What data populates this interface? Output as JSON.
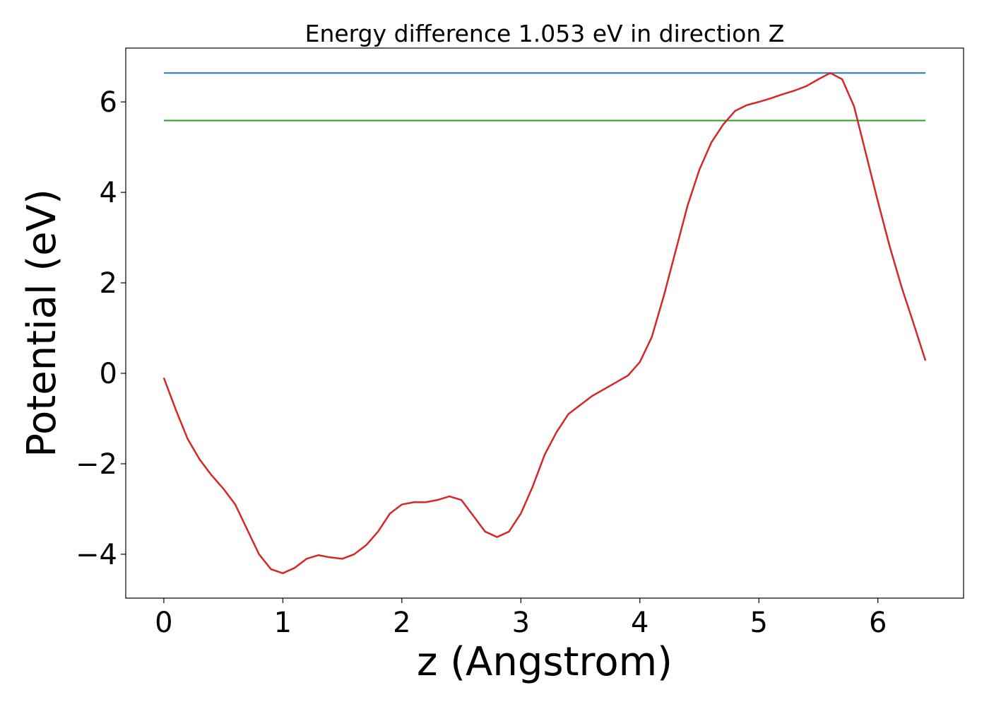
{
  "chart_data": {
    "type": "line",
    "title": "Energy difference 1.053 eV in direction Z",
    "xlabel": "z (Angstrom)",
    "ylabel": "Potential (eV)",
    "x": [
      0,
      0.1,
      0.2,
      0.3,
      0.4,
      0.5,
      0.6,
      0.7,
      0.8,
      0.9,
      1.0,
      1.1,
      1.2,
      1.3,
      1.4,
      1.5,
      1.6,
      1.7,
      1.8,
      1.9,
      2.0,
      2.1,
      2.2,
      2.3,
      2.4,
      2.5,
      2.6,
      2.7,
      2.8,
      2.9,
      3.0,
      3.1,
      3.2,
      3.3,
      3.4,
      3.5,
      3.6,
      3.7,
      3.8,
      3.9,
      4.0,
      4.1,
      4.2,
      4.3,
      4.4,
      4.5,
      4.6,
      4.7,
      4.8,
      4.9,
      5.0,
      5.1,
      5.2,
      5.3,
      5.4,
      5.5,
      5.6,
      5.7,
      5.8,
      5.9,
      6.0,
      6.1,
      6.2,
      6.3,
      6.4
    ],
    "series": [
      {
        "color": "#d62728",
        "values": [
          -0.1,
          -0.8,
          -1.45,
          -1.9,
          -2.25,
          -2.55,
          -2.9,
          -3.45,
          -4.0,
          -4.33,
          -4.42,
          -4.3,
          -4.1,
          -4.02,
          -4.07,
          -4.1,
          -4.0,
          -3.8,
          -3.5,
          -3.1,
          -2.9,
          -2.85,
          -2.85,
          -2.8,
          -2.72,
          -2.8,
          -3.15,
          -3.5,
          -3.62,
          -3.5,
          -3.1,
          -2.5,
          -1.8,
          -1.3,
          -0.9,
          -0.7,
          -0.5,
          -0.35,
          -0.2,
          -0.05,
          0.25,
          0.8,
          1.7,
          2.7,
          3.7,
          4.5,
          5.1,
          5.5,
          5.8,
          5.93,
          6.0,
          6.08,
          6.17,
          6.25,
          6.35,
          6.5,
          6.64,
          6.5,
          5.9,
          4.85,
          3.8,
          2.8,
          1.9,
          1.1,
          0.28
        ]
      }
    ],
    "hlines": [
      {
        "y": 6.64,
        "xmin": 0,
        "xmax": 6.4,
        "color": "#1f77b4"
      },
      {
        "y": 5.587,
        "xmin": 0,
        "xmax": 6.4,
        "color": "#2ca02c"
      }
    ],
    "xlim": [
      -0.32,
      6.72
    ],
    "ylim": [
      -4.97,
      7.19
    ],
    "xticks": [
      0,
      1,
      2,
      3,
      4,
      5,
      6
    ],
    "yticks": [
      {
        "value": -4,
        "label": "−4"
      },
      {
        "value": -2,
        "label": "−2"
      },
      0,
      2,
      4,
      6
    ]
  }
}
